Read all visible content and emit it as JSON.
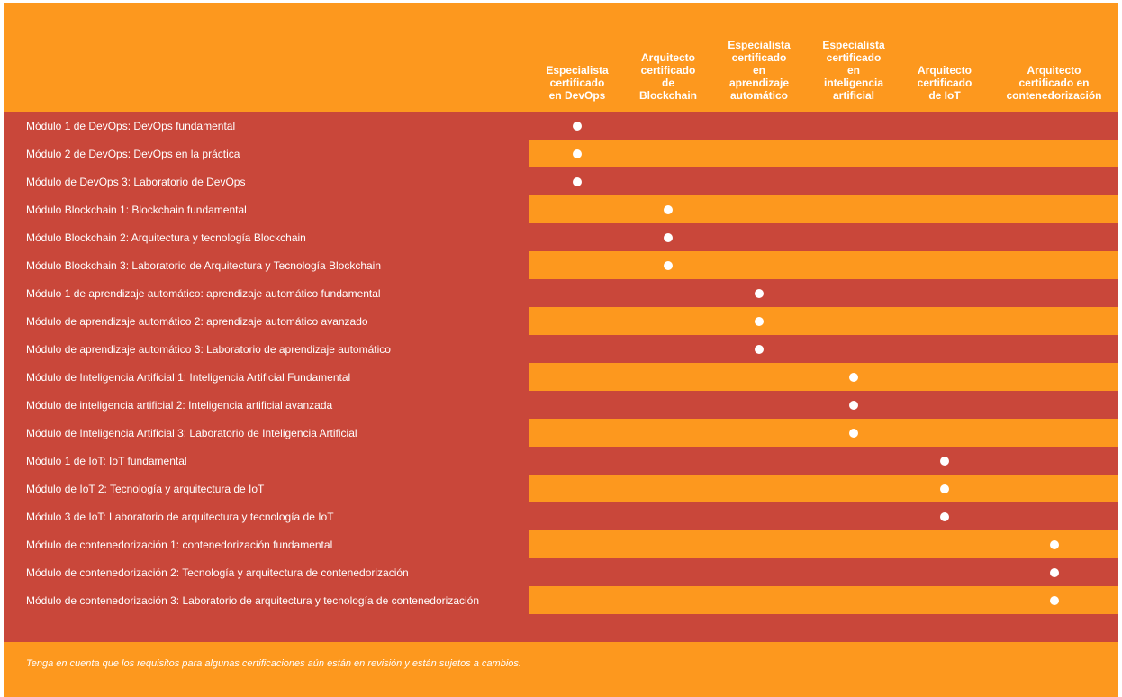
{
  "colors": {
    "orange": "#fd981e",
    "red": "#c9473a",
    "text": "#ffffff"
  },
  "columns": [
    {
      "id": "devops",
      "label": "Especialista certificado en DevOps",
      "lines": [
        "Especialista",
        "certificado",
        "en DevOps"
      ]
    },
    {
      "id": "blockchain",
      "label": "Arquitecto certificado de Blockchain",
      "lines": [
        "Arquitecto",
        "certificado",
        "de",
        "Blockchain"
      ]
    },
    {
      "id": "ml",
      "label": "Especialista certificado en aprendizaje automático",
      "lines": [
        "Especialista",
        "certificado",
        "en",
        "aprendizaje",
        "automático"
      ]
    },
    {
      "id": "ai",
      "label": "Especialista certificado en inteligencia artificial",
      "lines": [
        "Especialista",
        "certificado",
        "en",
        "inteligencia",
        "artificial"
      ]
    },
    {
      "id": "iot",
      "label": "Arquitecto certificado de IoT",
      "lines": [
        "Arquitecto",
        "certificado",
        "de IoT"
      ]
    },
    {
      "id": "containers",
      "label": "Arquitecto certificado en contenedorización",
      "lines": [
        "Arquitecto",
        "certificado en",
        "contenedorización"
      ]
    }
  ],
  "rows": [
    {
      "label": "Módulo 1 de DevOps: DevOps fundamental",
      "col": 0,
      "bg": "red"
    },
    {
      "label": "Módulo 2 de DevOps: DevOps en la práctica",
      "col": 0,
      "bg": "split"
    },
    {
      "label": "Módulo de DevOps 3: Laboratorio de DevOps",
      "col": 0,
      "bg": "red"
    },
    {
      "label": "Módulo Blockchain 1: Blockchain fundamental",
      "col": 1,
      "bg": "split"
    },
    {
      "label": "Módulo Blockchain 2: Arquitectura y tecnología Blockchain",
      "col": 1,
      "bg": "red"
    },
    {
      "label": "Módulo Blockchain 3: Laboratorio de Arquitectura y Tecnología Blockchain",
      "col": 1,
      "bg": "split"
    },
    {
      "label": "Módulo 1 de aprendizaje automático: aprendizaje automático fundamental",
      "col": 2,
      "bg": "red"
    },
    {
      "label": "Módulo de aprendizaje automático 2: aprendizaje automático avanzado",
      "col": 2,
      "bg": "split"
    },
    {
      "label": "Módulo de aprendizaje automático 3: Laboratorio de aprendizaje automático",
      "col": 2,
      "bg": "red"
    },
    {
      "label": "Módulo de Inteligencia Artificial 1: Inteligencia Artificial Fundamental",
      "col": 3,
      "bg": "split"
    },
    {
      "label": "Módulo de inteligencia artificial 2: Inteligencia artificial avanzada",
      "col": 3,
      "bg": "red"
    },
    {
      "label": "Módulo de Inteligencia Artificial 3: Laboratorio de Inteligencia Artificial",
      "col": 3,
      "bg": "split"
    },
    {
      "label": "Módulo 1 de IoT: IoT fundamental",
      "col": 4,
      "bg": "red"
    },
    {
      "label": "Módulo de IoT 2: Tecnología y arquitectura de IoT",
      "col": 4,
      "bg": "split"
    },
    {
      "label": "Módulo 3 de IoT: Laboratorio de arquitectura y tecnología de IoT",
      "col": 4,
      "bg": "red"
    },
    {
      "label": "Módulo de contenedorización 1: contenedorización fundamental",
      "col": 5,
      "bg": "split"
    },
    {
      "label": "Módulo de contenedorización 2: Tecnología y arquitectura de contenedorización",
      "col": 5,
      "bg": "red"
    },
    {
      "label": "Módulo de contenedorización 3: Laboratorio de arquitectura y tecnología de contenedorización",
      "col": 5,
      "bg": "split"
    }
  ],
  "note": "Tenga en cuenta que los requisitos para algunas certificaciones aún están en revisión y están sujetos a cambios."
}
